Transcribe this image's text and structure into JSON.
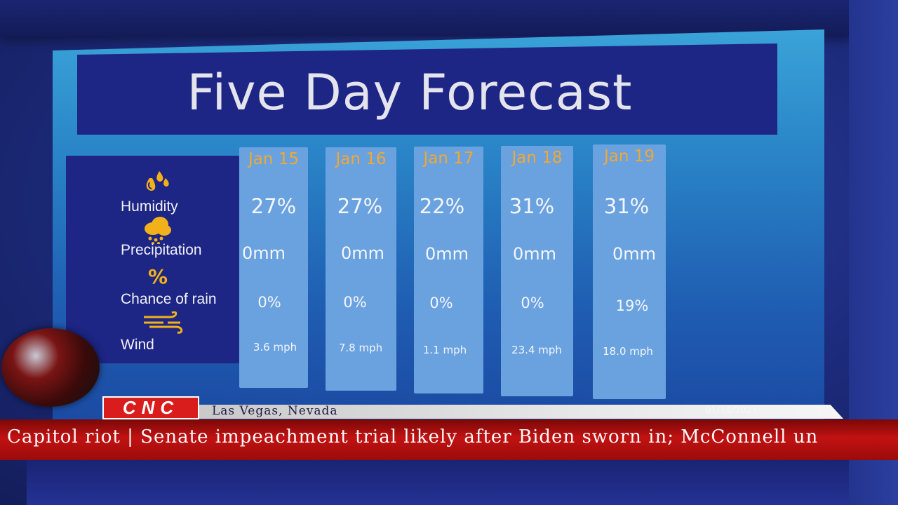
{
  "title": "Five Day Forecast",
  "row_labels": {
    "humidity": "Humidity",
    "precipitation": "Precipitation",
    "chance_of_rain": "Chance of rain",
    "wind": "Wind",
    "percent_symbol": "%"
  },
  "days": [
    {
      "date": "Jan 15",
      "humidity": "27%",
      "precipitation": "0mm",
      "chance_of_rain": "0%",
      "wind": "3.6 mph"
    },
    {
      "date": "Jan 16",
      "humidity": "27%",
      "precipitation": "0mm",
      "chance_of_rain": "0%",
      "wind": "7.8 mph"
    },
    {
      "date": "Jan 17",
      "humidity": "22%",
      "precipitation": "0mm",
      "chance_of_rain": "0%",
      "wind": "1.1 mph"
    },
    {
      "date": "Jan 18",
      "humidity": "31%",
      "precipitation": "0mm",
      "chance_of_rain": "0%",
      "wind": "23.4 mph"
    },
    {
      "date": "Jan 19",
      "humidity": "31%",
      "precipitation": "0mm",
      "chance_of_rain": "19%",
      "wind": "18.0 mph"
    }
  ],
  "lower_third": {
    "logo": "CNC",
    "location": "Las Vegas, Nevada",
    "date": "01/14/2021",
    "ticker": "Capitol riot | Senate impeachment trial likely after Biden sworn in; McConnell un"
  },
  "colors": {
    "banner": "#1d2585",
    "column": "#6aa2e0",
    "date_text": "#f0a832",
    "icon": "#f2b11a",
    "ticker": "#c21212",
    "logo": "#d91c1c"
  },
  "icons": {
    "humidity": "humidity-drops-icon",
    "precipitation": "rain-cloud-icon",
    "chance_of_rain": "percent-icon",
    "wind": "wind-icon"
  }
}
